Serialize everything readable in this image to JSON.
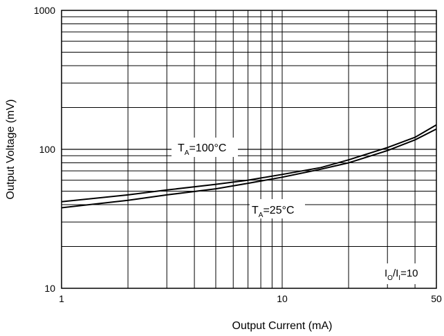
{
  "chart_data": {
    "type": "line",
    "x_scale": "log",
    "y_scale": "log",
    "xlabel": "Output Current (mA)",
    "ylabel": "Output Voltage (mV)",
    "xlim": [
      1,
      50
    ],
    "ylim": [
      10,
      1000
    ],
    "grid": true,
    "x_tick_labels": [
      "1",
      "10",
      "50"
    ],
    "x_tick_values": [
      1,
      10,
      50
    ],
    "y_tick_labels": [
      "10",
      "100",
      "1000"
    ],
    "y_tick_values": [
      10,
      100,
      1000
    ],
    "annotations": {
      "t100": {
        "main": "T",
        "sub": "A",
        "rest": "=100°C"
      },
      "t25": {
        "main": "T",
        "sub": "A",
        "rest": "=25°C"
      },
      "ratio": {
        "p1": "I",
        "s1": "O",
        "p2": "/I",
        "s2": "I",
        "p3": "=10"
      }
    },
    "series": [
      {
        "x": [
          1,
          2,
          3,
          5,
          7,
          10,
          15,
          20,
          30,
          40,
          50
        ],
        "y": [
          42,
          47,
          51,
          56,
          60,
          66,
          74,
          84,
          103,
          122,
          150
        ]
      },
      {
        "x": [
          1,
          2,
          3,
          5,
          7,
          10,
          15,
          20,
          30,
          40,
          50
        ],
        "y": [
          38,
          43,
          47,
          52,
          57,
          63,
          72,
          80,
          98,
          117,
          140
        ]
      }
    ]
  }
}
